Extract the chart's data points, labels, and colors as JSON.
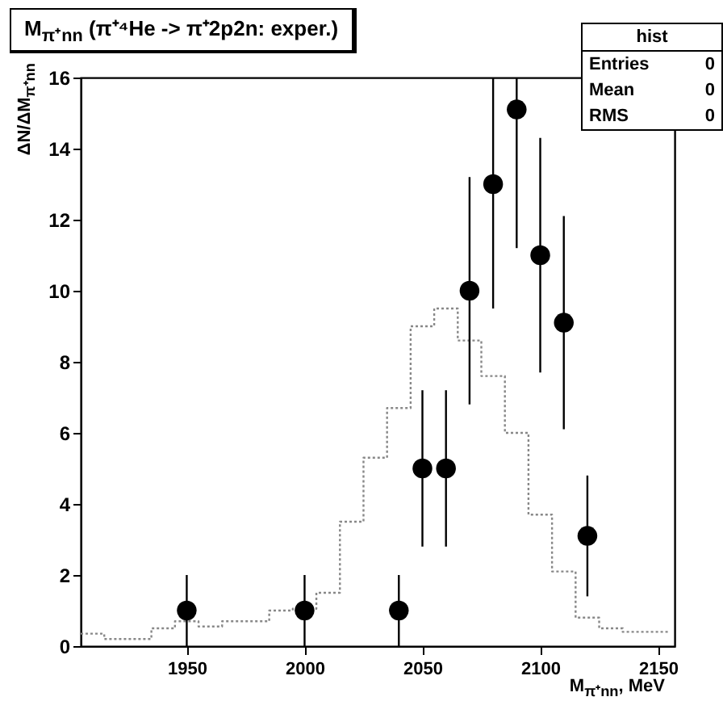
{
  "chart_data": {
    "type": "scatter",
    "title": "M$_{π⁺nn}$ (π⁺⁴He -> π⁺2p2n: exper.)",
    "xlabel": "M$_{π⁺nn}$, MeV",
    "ylabel": "ΔN/ΔM$_{π⁺nn}$",
    "annotations": [
      "hist",
      "Entries",
      "0",
      "Mean",
      "0",
      "RMS",
      "0"
    ],
    "xlim": [
      1905,
      2157
    ],
    "ylim": [
      0,
      16
    ],
    "xticks": [
      1950,
      2000,
      2050,
      2100,
      2150
    ],
    "yticks": [
      0,
      2,
      4,
      6,
      8,
      10,
      12,
      14,
      16
    ],
    "series": [
      {
        "type": "histogram",
        "color": "#888888",
        "line_style": "dotted",
        "bins": [
          1905,
          1915,
          1925,
          1935,
          1945,
          1955,
          1965,
          1975,
          1985,
          1995,
          2005,
          2015,
          2025,
          2035,
          2045,
          2055,
          2065,
          2075,
          2085,
          2095,
          2105,
          2115,
          2125,
          2135,
          2145,
          2155
        ],
        "values": [
          0.35,
          0.2,
          0.2,
          0.5,
          0.7,
          0.55,
          0.7,
          0.7,
          1.0,
          1.05,
          1.5,
          3.5,
          5.3,
          6.7,
          9.0,
          9.5,
          8.6,
          7.6,
          6.0,
          3.7,
          2.1,
          0.8,
          0.5,
          0.4,
          0.4
        ]
      },
      {
        "type": "scatter",
        "color": "#000000",
        "marker": "circle",
        "x": [
          1950,
          2000,
          2040,
          2050,
          2060,
          2070,
          2080,
          2090,
          2100,
          2110,
          2120
        ],
        "values": [
          1,
          1,
          1,
          5,
          5,
          10,
          13,
          15.1,
          11,
          9.1,
          3.1
        ],
        "errors": [
          1,
          1,
          1,
          2.2,
          2.2,
          3.2,
          [
            9.5,
            16
          ],
          [
            11.2,
            16
          ],
          3.3,
          3,
          1.7
        ]
      }
    ]
  }
}
